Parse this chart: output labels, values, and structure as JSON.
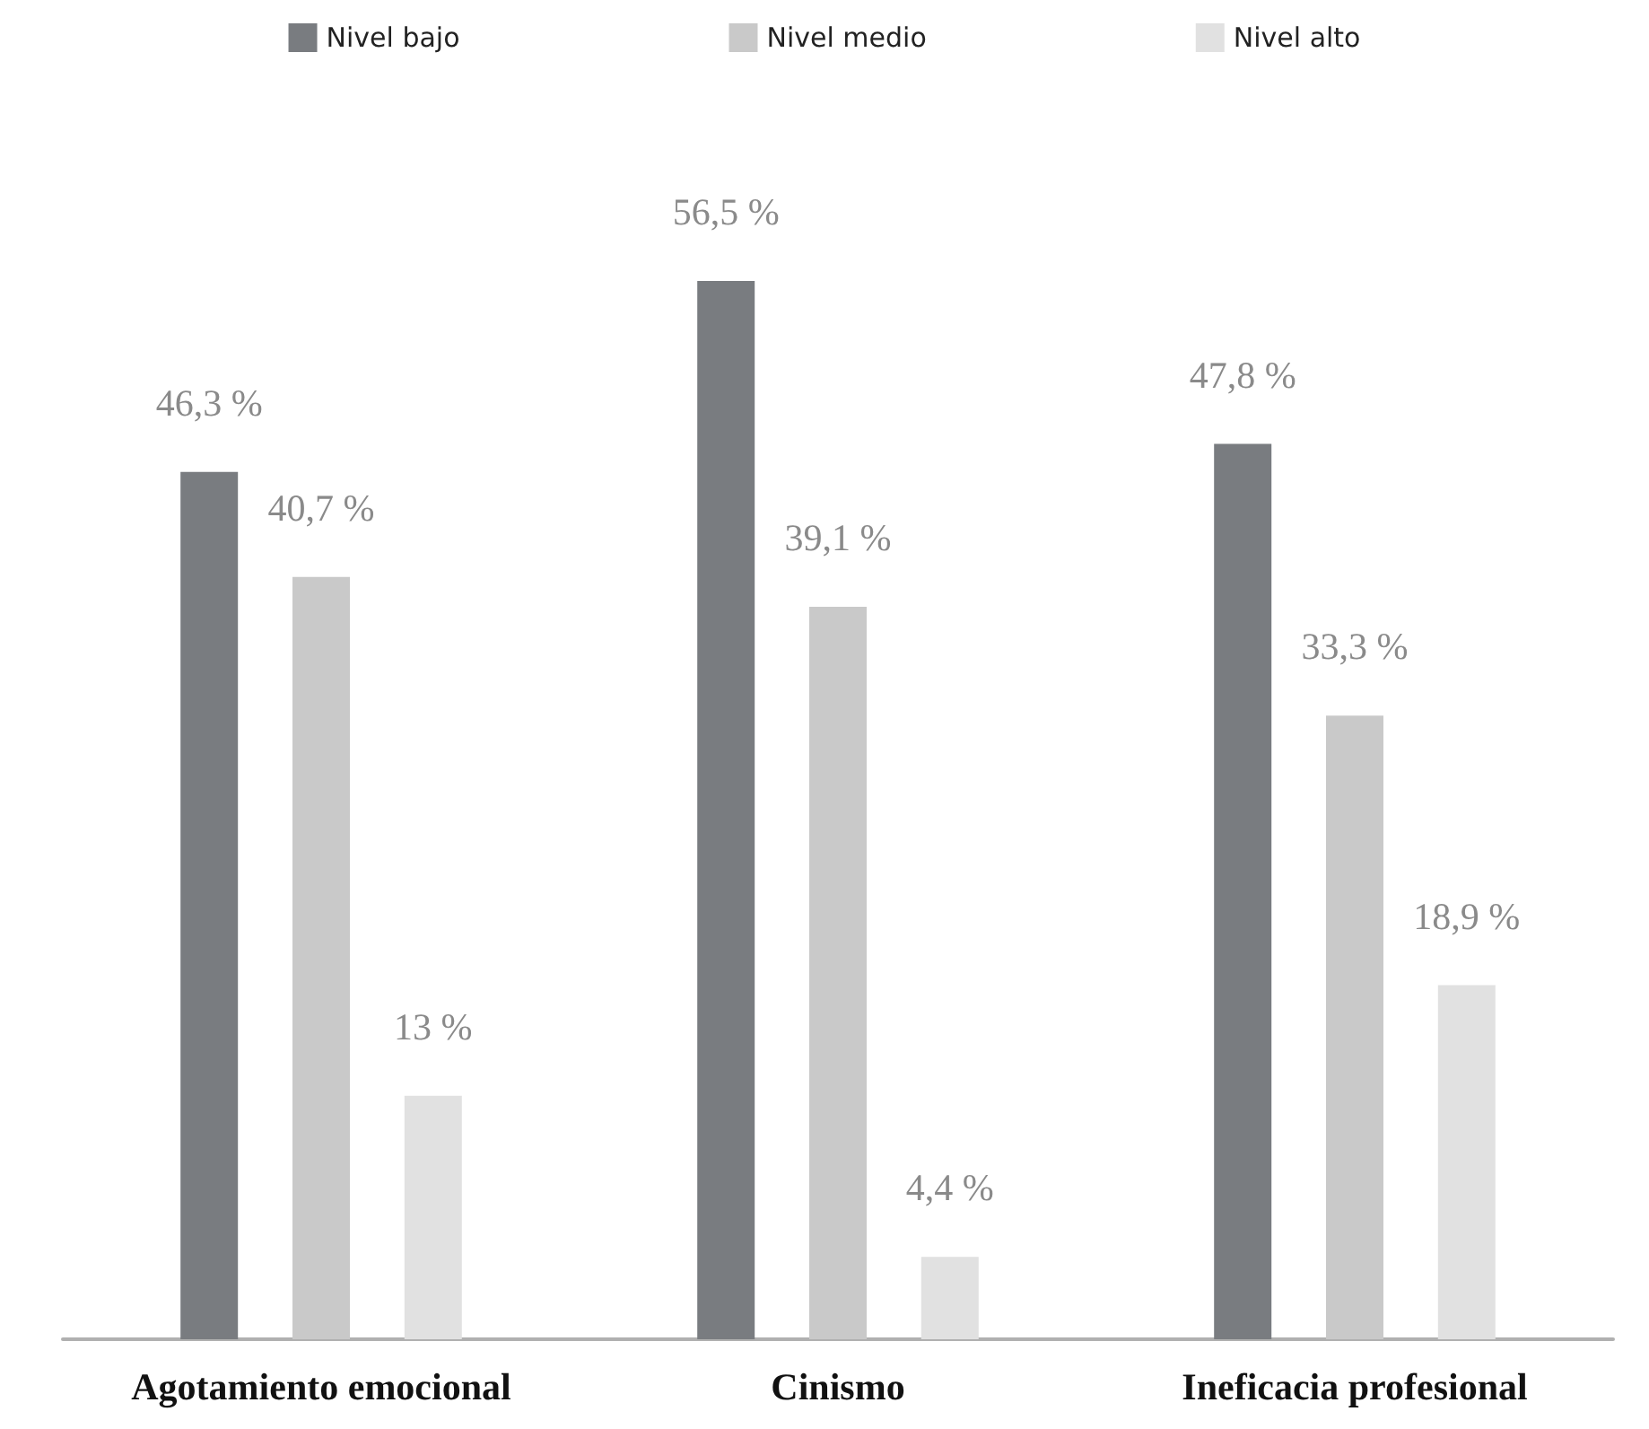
{
  "chart_data": {
    "type": "bar",
    "categories": [
      "Agotamiento emocional",
      "Cinismo",
      "Ineficacia profesional"
    ],
    "series": [
      {
        "name": "Nivel bajo",
        "color": "#797c80",
        "values": [
          46.3,
          56.5,
          47.8
        ],
        "value_labels": [
          "46,3 %",
          "56,5 %",
          "47,8 %"
        ]
      },
      {
        "name": "Nivel medio",
        "color": "#c9c9c9",
        "values": [
          40.7,
          39.1,
          33.3
        ],
        "value_labels": [
          "40,7 %",
          "39,1 %",
          "33,3 %"
        ]
      },
      {
        "name": "Nivel alto",
        "color": "#e1e1e1",
        "values": [
          13,
          4.4,
          18.9
        ],
        "value_labels": [
          "13 %",
          "4,4 %",
          "18,9 %"
        ]
      }
    ],
    "legend": "top"
  }
}
